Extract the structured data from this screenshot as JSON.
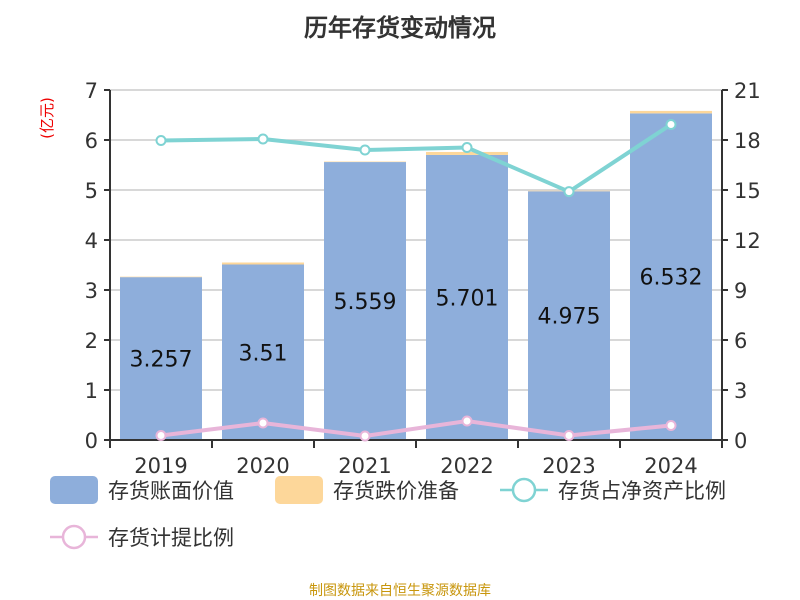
{
  "title": "历年存货变动情况",
  "source": "制图数据来自恒生聚源数据库",
  "chart_data": {
    "type": "bar",
    "title": "历年存货变动情况",
    "categories": [
      "2019",
      "2020",
      "2021",
      "2022",
      "2023",
      "2024"
    ],
    "left_axis": {
      "label": "(亿元)",
      "range": [
        0,
        7
      ],
      "ticks": [
        0,
        1,
        2,
        3,
        4,
        5,
        6,
        7
      ]
    },
    "right_axis": {
      "label": "%",
      "range": [
        0,
        21
      ],
      "ticks": [
        0,
        3,
        6,
        9,
        12,
        15,
        18,
        21
      ]
    },
    "grid": true,
    "legend_placement": "bottom",
    "series": [
      {
        "name": "存货账面价值",
        "type": "bar",
        "stack": "a",
        "axis": "left",
        "color": "#8eaedb",
        "values": [
          3.257,
          3.51,
          5.559,
          5.701,
          4.975,
          6.532
        ],
        "labels": [
          "3.257",
          "3.51",
          "5.559",
          "5.701",
          "4.975",
          "6.532"
        ]
      },
      {
        "name": "存货跌价准备",
        "type": "bar",
        "stack": "a",
        "axis": "left",
        "color": "#fdd79a",
        "values": [
          0.01,
          0.04,
          0.01,
          0.06,
          0.01,
          0.05
        ]
      },
      {
        "name": "存货占净资产比例",
        "type": "line",
        "axis": "right",
        "color": "#7fd3d3",
        "values": [
          17.97,
          18.06,
          17.4,
          17.55,
          14.9,
          18.93
        ]
      },
      {
        "name": "存货计提比例",
        "type": "line",
        "axis": "right",
        "color": "#e8b5d9",
        "values": [
          0.27,
          1.02,
          0.24,
          1.14,
          0.27,
          0.87
        ]
      }
    ]
  }
}
